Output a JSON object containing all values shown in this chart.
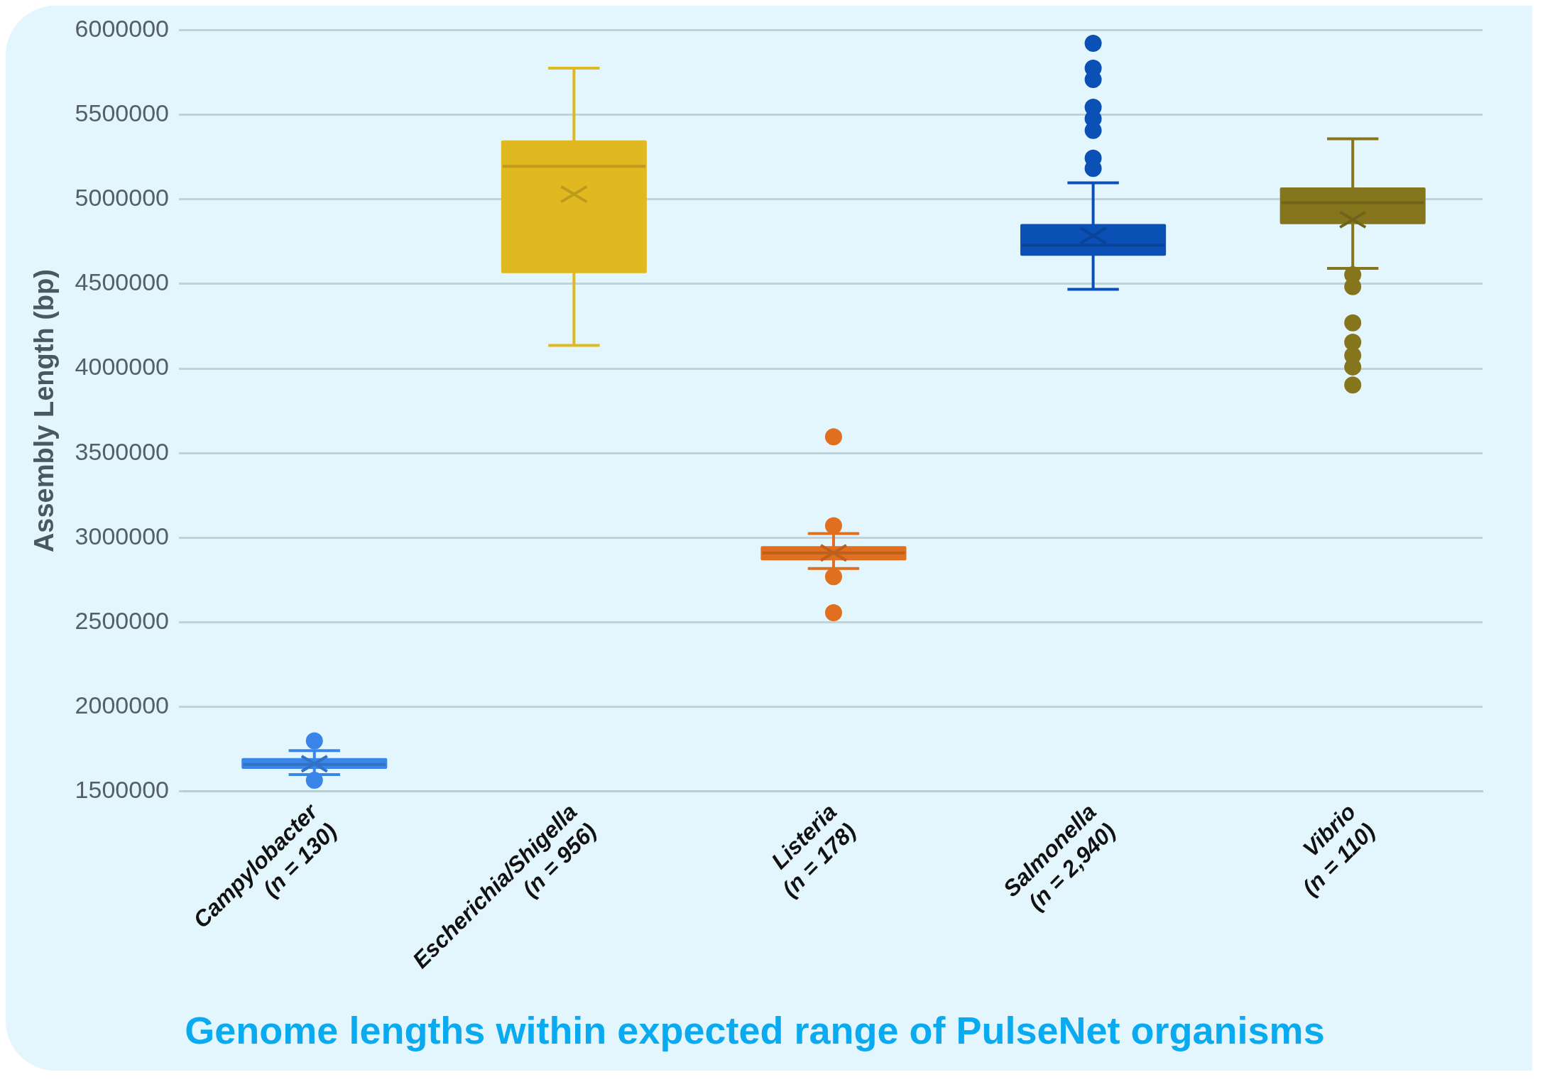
{
  "chart_data": {
    "type": "box",
    "title": "Genome lengths within expected range of PulseNet organisms",
    "ylabel": "Assembly Length (bp)",
    "categories": [
      "Campylobacter (n = 130)",
      "Escherichia/Shigella (n = 956)",
      "Listeria (n = 178)",
      "Salmonella (n = 2,940)",
      "Vibrio (n = 110)"
    ],
    "colors": [
      "#3a86e8",
      "#e0b820",
      "#e07020",
      "#0a50b5",
      "#85761e"
    ],
    "boxes": [
      {
        "low": 1600000,
        "q1": 1642000,
        "median": 1660000,
        "q3": 1689000,
        "high": 1742000,
        "mean": 1664000,
        "outliers": [
          1799000,
          1566000
        ]
      },
      {
        "low": 4136000,
        "q1": 4572000,
        "median": 5195000,
        "q3": 5340000,
        "high": 5775000,
        "mean": 5030000
      },
      {
        "low": 2818000,
        "q1": 2874000,
        "median": 2910000,
        "q3": 2942000,
        "high": 3024000,
        "mean": 2910000,
        "outliers": [
          3596000,
          3071000,
          2770000,
          2557000
        ]
      },
      {
        "low": 4468000,
        "q1": 4675000,
        "median": 4729000,
        "q3": 4846000,
        "high": 5097000,
        "mean": 4786000,
        "outliers": [
          5922000,
          5775000,
          5708000,
          5544000,
          5476000,
          5407000,
          5243000,
          5182000
        ]
      },
      {
        "low": 4592000,
        "q1": 4861000,
        "median": 4980000,
        "q3": 5062000,
        "high": 5358000,
        "mean": 4880000,
        "outliers": [
          4554000,
          4484000,
          4270000,
          4155000,
          4077000,
          4009000,
          3903000
        ]
      }
    ],
    "ylim": [
      1500000,
      6000000
    ],
    "yticks": [
      1500000,
      2000000,
      2500000,
      3000000,
      3500000,
      4000000,
      4500000,
      5000000,
      5500000,
      6000000
    ],
    "grid": "y",
    "legend": false,
    "marker": "circle"
  }
}
